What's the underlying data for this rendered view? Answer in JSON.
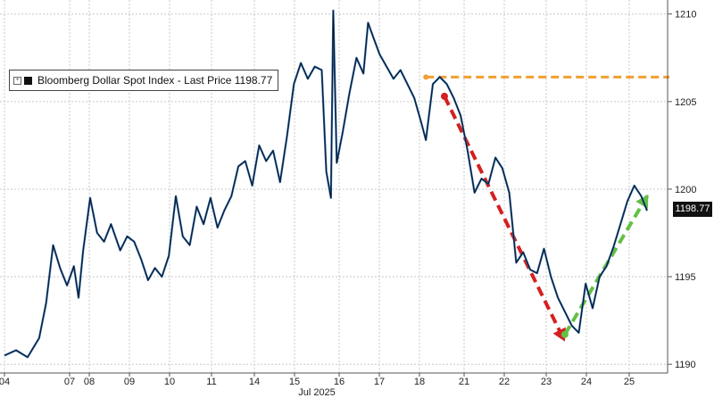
{
  "chart_data": {
    "type": "line",
    "legend_label": "Bloomberg Dollar Spot Index - Last Price 1198.77",
    "legend_placement": "top-left",
    "last_price_tag": "1198.77",
    "x_tick_labels": [
      "04",
      "07",
      "08",
      "09",
      "10",
      "11",
      "14",
      "15",
      "16",
      "17",
      "18",
      "21",
      "22",
      "23",
      "24",
      "25"
    ],
    "x_month_label": "Jul 2025",
    "y_tick_labels": [
      "1190",
      "1195",
      "1200",
      "1205",
      "1210"
    ],
    "ylim": [
      1189.5,
      1210.8
    ],
    "grid": true,
    "series": [
      {
        "color": "#1f5fa8",
        "values": [
          [
            0.0,
            1190.5
          ],
          [
            0.5,
            1190.8
          ],
          [
            1.0,
            1190.4
          ],
          [
            1.5,
            1191.5
          ],
          [
            1.8,
            1193.5
          ],
          [
            2.1,
            1196.8
          ],
          [
            2.4,
            1195.5
          ],
          [
            2.7,
            1194.5
          ],
          [
            3.0,
            1195.6
          ],
          [
            3.2,
            1193.8
          ],
          [
            3.4,
            1196.5
          ],
          [
            3.7,
            1199.5
          ],
          [
            4.0,
            1197.5
          ],
          [
            4.3,
            1197.0
          ],
          [
            4.6,
            1198.0
          ],
          [
            5.0,
            1196.5
          ],
          [
            5.3,
            1197.3
          ],
          [
            5.6,
            1197.0
          ],
          [
            5.9,
            1196.0
          ],
          [
            6.2,
            1194.8
          ],
          [
            6.5,
            1195.5
          ],
          [
            6.8,
            1195.0
          ],
          [
            7.1,
            1196.2
          ],
          [
            7.4,
            1199.6
          ],
          [
            7.7,
            1197.3
          ],
          [
            8.0,
            1196.8
          ],
          [
            8.3,
            1199.0
          ],
          [
            8.6,
            1198.0
          ],
          [
            8.9,
            1199.5
          ],
          [
            9.2,
            1197.8
          ],
          [
            9.5,
            1198.8
          ],
          [
            9.8,
            1199.6
          ],
          [
            10.1,
            1201.3
          ],
          [
            10.4,
            1201.6
          ],
          [
            10.7,
            1200.2
          ],
          [
            11.0,
            1202.5
          ],
          [
            11.3,
            1201.6
          ],
          [
            11.6,
            1202.2
          ],
          [
            11.9,
            1200.4
          ],
          [
            12.2,
            1203.0
          ],
          [
            12.5,
            1206.0
          ],
          [
            12.8,
            1207.2
          ],
          [
            13.1,
            1206.3
          ],
          [
            13.4,
            1207.0
          ],
          [
            13.7,
            1206.8
          ],
          [
            13.9,
            1201.0
          ],
          [
            14.1,
            1199.5
          ],
          [
            14.2,
            1210.2
          ],
          [
            14.35,
            1201.5
          ],
          [
            14.6,
            1203.2
          ],
          [
            14.9,
            1205.5
          ],
          [
            15.2,
            1207.5
          ],
          [
            15.5,
            1206.6
          ],
          [
            15.7,
            1209.5
          ],
          [
            15.95,
            1208.6
          ],
          [
            16.2,
            1207.7
          ],
          [
            16.5,
            1207.0
          ],
          [
            16.8,
            1206.3
          ],
          [
            17.1,
            1206.8
          ],
          [
            17.4,
            1206.0
          ],
          [
            17.7,
            1205.2
          ],
          [
            18.0,
            1203.8
          ],
          [
            18.2,
            1202.8
          ],
          [
            18.5,
            1206.0
          ],
          [
            18.8,
            1206.4
          ],
          [
            19.1,
            1206.0
          ],
          [
            19.4,
            1205.2
          ],
          [
            19.7,
            1204.2
          ],
          [
            20.0,
            1202.2
          ],
          [
            20.3,
            1199.8
          ],
          [
            20.6,
            1200.6
          ],
          [
            20.9,
            1200.3
          ],
          [
            21.2,
            1201.8
          ],
          [
            21.5,
            1201.2
          ],
          [
            21.8,
            1199.8
          ],
          [
            22.1,
            1195.8
          ],
          [
            22.4,
            1196.4
          ],
          [
            22.7,
            1195.4
          ],
          [
            23.0,
            1195.2
          ],
          [
            23.3,
            1196.6
          ],
          [
            23.6,
            1195.0
          ],
          [
            23.9,
            1193.8
          ],
          [
            24.2,
            1193.0
          ],
          [
            24.5,
            1192.2
          ],
          [
            24.8,
            1191.8
          ],
          [
            25.1,
            1194.6
          ],
          [
            25.4,
            1193.2
          ],
          [
            25.7,
            1195.0
          ],
          [
            26.0,
            1195.6
          ],
          [
            26.3,
            1196.7
          ],
          [
            26.6,
            1198.0
          ],
          [
            26.9,
            1199.3
          ],
          [
            27.2,
            1200.2
          ],
          [
            27.5,
            1199.6
          ],
          [
            27.75,
            1198.77
          ]
        ]
      }
    ],
    "annotations": [
      {
        "kind": "hline",
        "color": "#f0a030",
        "from": [
          18.2,
          1206.4
        ],
        "to": [
          30.0,
          1206.4
        ]
      },
      {
        "kind": "arrow",
        "color": "#d42020",
        "from": [
          19.0,
          1205.3
        ],
        "to": [
          24.2,
          1191.3
        ]
      },
      {
        "kind": "arrow",
        "color": "#64c044",
        "from": [
          24.2,
          1191.7
        ],
        "to": [
          27.8,
          1199.7
        ]
      }
    ]
  }
}
